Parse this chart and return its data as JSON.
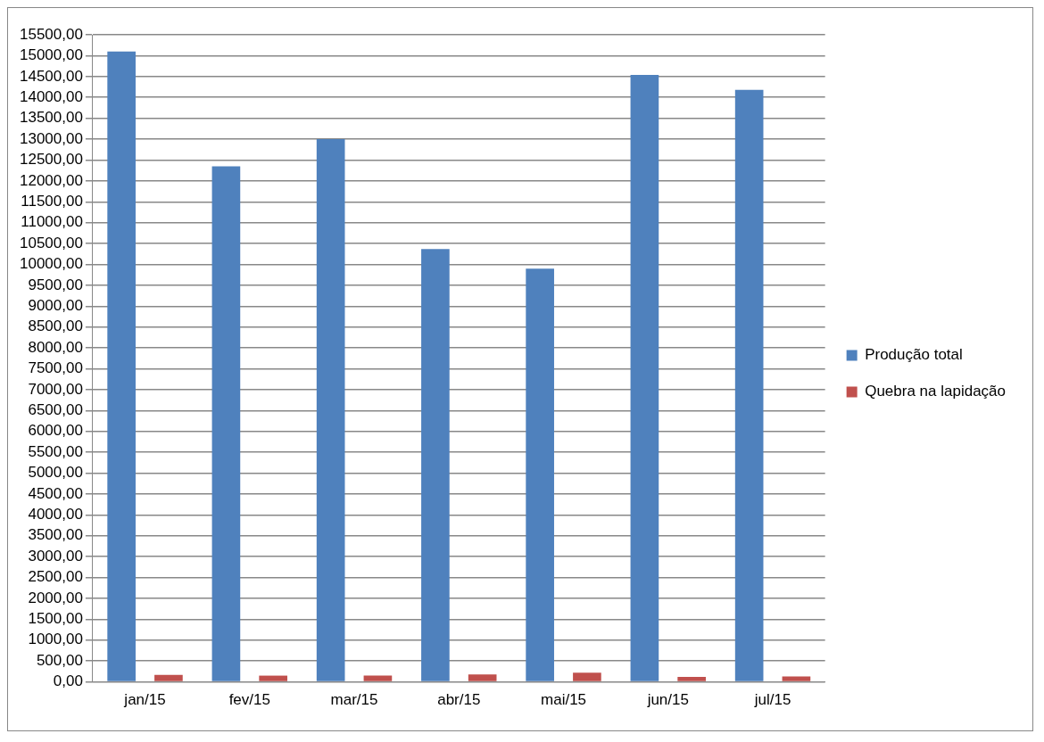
{
  "chart_data": {
    "type": "bar",
    "categories": [
      "jan/15",
      "fev/15",
      "mar/15",
      "abr/15",
      "mai/15",
      "jun/15",
      "jul/15"
    ],
    "series": [
      {
        "name": "Produção total",
        "color": "#4f81bd",
        "values": [
          15100,
          12350,
          13000,
          10370,
          9900,
          14540,
          14180
        ]
      },
      {
        "name": "Quebra na lapidação",
        "color": "#c0504d",
        "values": [
          170,
          150,
          150,
          180,
          220,
          120,
          130
        ]
      }
    ],
    "ylim": [
      0,
      15500
    ],
    "yticks": [
      {
        "value": 0,
        "label": "0,00"
      },
      {
        "value": 500,
        "label": "500,00"
      },
      {
        "value": 1000,
        "label": "1000,00"
      },
      {
        "value": 1500,
        "label": "1500,00"
      },
      {
        "value": 2000,
        "label": "2000,00"
      },
      {
        "value": 2500,
        "label": "2500,00"
      },
      {
        "value": 3000,
        "label": "3000,00"
      },
      {
        "value": 3500,
        "label": "3500,00"
      },
      {
        "value": 4000,
        "label": "4000,00"
      },
      {
        "value": 4500,
        "label": "4500,00"
      },
      {
        "value": 5000,
        "label": "5000,00"
      },
      {
        "value": 5500,
        "label": "5500,00"
      },
      {
        "value": 6000,
        "label": "6000,00"
      },
      {
        "value": 6500,
        "label": "6500,00"
      },
      {
        "value": 7000,
        "label": "7000,00"
      },
      {
        "value": 7500,
        "label": "7500,00"
      },
      {
        "value": 8000,
        "label": "8000,00"
      },
      {
        "value": 8500,
        "label": "8500,00"
      },
      {
        "value": 9000,
        "label": "9000,00"
      },
      {
        "value": 9500,
        "label": "9500,00"
      },
      {
        "value": 10000,
        "label": "10000,00"
      },
      {
        "value": 10500,
        "label": "10500,00"
      },
      {
        "value": 11000,
        "label": "11000,00"
      },
      {
        "value": 11500,
        "label": "11500,00"
      },
      {
        "value": 12000,
        "label": "12000,00"
      },
      {
        "value": 12500,
        "label": "12500,00"
      },
      {
        "value": 13000,
        "label": "13000,00"
      },
      {
        "value": 13500,
        "label": "13500,00"
      },
      {
        "value": 14000,
        "label": "14000,00"
      },
      {
        "value": 14500,
        "label": "14500,00"
      },
      {
        "value": 15000,
        "label": "15000,00"
      },
      {
        "value": 15500,
        "label": "15500,00"
      }
    ],
    "grid": "y",
    "legend": "right"
  }
}
